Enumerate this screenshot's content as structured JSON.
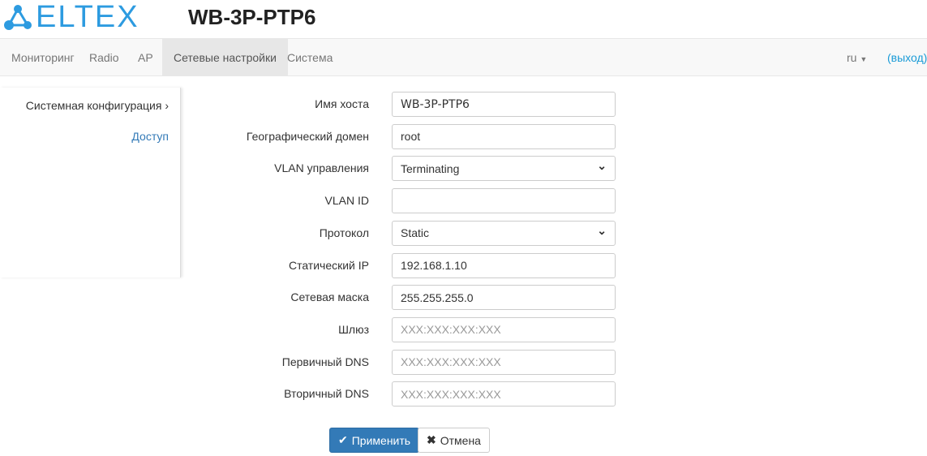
{
  "header": {
    "logo": "ELTEX",
    "title": "WB-3P-PTP6"
  },
  "nav": {
    "items": [
      "Мониторинг",
      "Radio",
      "AP",
      "Сетевые настройки",
      "Система"
    ],
    "lang": "ru",
    "logout": "(выход)"
  },
  "sidebar": {
    "items": [
      "Системная конфигурация",
      "Доступ"
    ]
  },
  "form": {
    "fields": [
      {
        "label": "Имя хоста",
        "value": "WB-3P-PTP6",
        "placeholder": ""
      },
      {
        "label": "Географический домен",
        "value": "root",
        "placeholder": ""
      },
      {
        "label": "VLAN управления",
        "value": "Terminating",
        "type": "select"
      },
      {
        "label": "VLAN ID",
        "value": "",
        "placeholder": ""
      },
      {
        "label": "Протокол",
        "value": "Static",
        "type": "select"
      },
      {
        "label": "Статический IP",
        "value": "192.168.1.10",
        "placeholder": ""
      },
      {
        "label": "Сетевая маска",
        "value": "255.255.255.0",
        "placeholder": ""
      },
      {
        "label": "Шлюз",
        "value": "",
        "placeholder": "XXX:XXX:XXX:XXX"
      },
      {
        "label": "Первичный DNS",
        "value": "",
        "placeholder": "XXX:XXX:XXX:XXX"
      },
      {
        "label": "Вторичный DNS",
        "value": "",
        "placeholder": "XXX:XXX:XXX:XXX"
      }
    ]
  },
  "buttons": {
    "apply": "Применить",
    "cancel": "Отмена"
  },
  "colors": {
    "brand": "#2d9be0",
    "primary": "#337ab7",
    "link": "#1a9bd7"
  }
}
